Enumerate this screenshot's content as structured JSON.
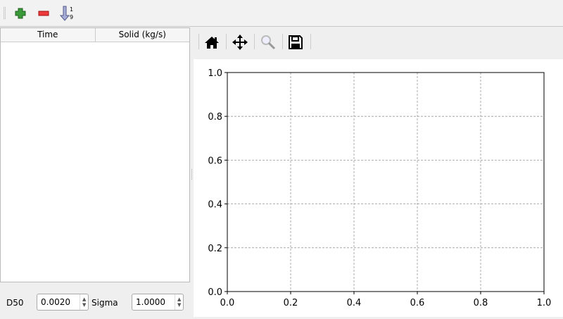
{
  "toolbar": {
    "buttons": [
      {
        "name": "add-row",
        "icon": "plus-icon",
        "color": "#3a9a3a"
      },
      {
        "name": "remove-row",
        "icon": "minus-icon",
        "color": "#e03030"
      },
      {
        "name": "sort",
        "icon": "sort-ascending-icon",
        "label_top": "1",
        "label_bottom": "9"
      }
    ]
  },
  "table": {
    "columns": [
      "Time",
      "Solid (kg/s)"
    ],
    "rows": []
  },
  "params": {
    "d50_label": "D50",
    "d50_value": "0.0020",
    "sigma_label": "Sigma",
    "sigma_value": "1.0000"
  },
  "plot_toolbar": {
    "buttons": [
      "home-icon",
      "pan-icon",
      "zoom-icon",
      "save-icon"
    ]
  },
  "chart_data": {
    "type": "line",
    "title": "",
    "xlabel": "",
    "ylabel": "",
    "xlim": [
      0,
      1
    ],
    "ylim": [
      0,
      1
    ],
    "xticks": [
      "0.0",
      "0.2",
      "0.4",
      "0.6",
      "0.8",
      "1.0"
    ],
    "yticks": [
      "0.0",
      "0.2",
      "0.4",
      "0.6",
      "0.8",
      "1.0"
    ],
    "grid": true,
    "series": []
  }
}
